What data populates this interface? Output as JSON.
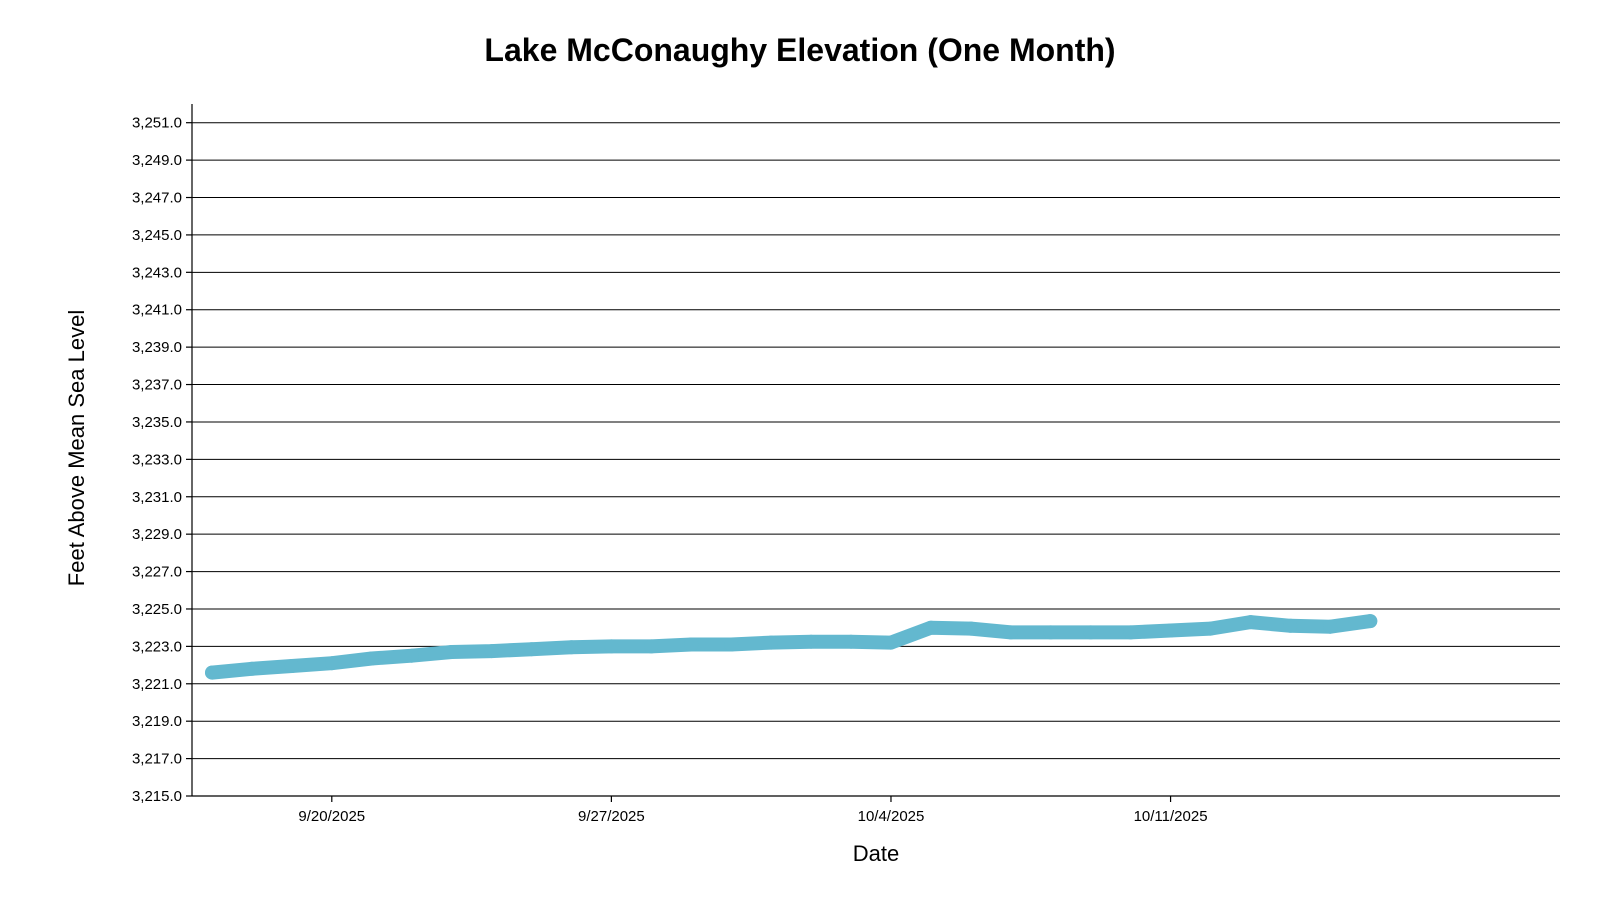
{
  "chart_data": {
    "type": "line",
    "title": "Lake McConaughy Elevation (One Month)",
    "xlabel": "Date",
    "ylabel": "Feet Above Mean Sea Level",
    "ylim": [
      3215.0,
      3252.0
    ],
    "xlim": [
      "2025-09-16T12:00",
      "2025-10-20T18:00"
    ],
    "grid": true,
    "line_color": "#63b8cf",
    "y_ticks": [
      "3,215.0",
      "3,217.0",
      "3,219.0",
      "3,221.0",
      "3,223.0",
      "3,225.0",
      "3,227.0",
      "3,229.0",
      "3,231.0",
      "3,233.0",
      "3,235.0",
      "3,237.0",
      "3,239.0",
      "3,241.0",
      "3,243.0",
      "3,245.0",
      "3,247.0",
      "3,249.0",
      "3,251.0"
    ],
    "x_ticks": [
      {
        "date": "2025-09-20",
        "label": "9/20/2025"
      },
      {
        "date": "2025-09-27",
        "label": "9/27/2025"
      },
      {
        "date": "2025-10-04",
        "label": "10/4/2025"
      },
      {
        "date": "2025-10-11",
        "label": "10/11/2025"
      }
    ],
    "series": [
      {
        "points": [
          {
            "x": "2025-09-17",
            "y": 3221.6
          },
          {
            "x": "2025-09-18",
            "y": 3221.8
          },
          {
            "x": "2025-09-19",
            "y": 3221.95
          },
          {
            "x": "2025-09-20",
            "y": 3222.1
          },
          {
            "x": "2025-09-21",
            "y": 3222.35
          },
          {
            "x": "2025-09-22",
            "y": 3222.5
          },
          {
            "x": "2025-09-23",
            "y": 3222.7
          },
          {
            "x": "2025-09-24",
            "y": 3222.75
          },
          {
            "x": "2025-09-25",
            "y": 3222.85
          },
          {
            "x": "2025-09-26",
            "y": 3222.95
          },
          {
            "x": "2025-09-27",
            "y": 3223.0
          },
          {
            "x": "2025-09-28",
            "y": 3223.0
          },
          {
            "x": "2025-09-29",
            "y": 3223.1
          },
          {
            "x": "2025-09-30",
            "y": 3223.1
          },
          {
            "x": "2025-10-01",
            "y": 3223.2
          },
          {
            "x": "2025-10-02",
            "y": 3223.25
          },
          {
            "x": "2025-10-03",
            "y": 3223.25
          },
          {
            "x": "2025-10-04",
            "y": 3223.2
          },
          {
            "x": "2025-10-05",
            "y": 3224.0
          },
          {
            "x": "2025-10-06",
            "y": 3223.95
          },
          {
            "x": "2025-10-07",
            "y": 3223.75
          },
          {
            "x": "2025-10-08",
            "y": 3223.75
          },
          {
            "x": "2025-10-09",
            "y": 3223.75
          },
          {
            "x": "2025-10-10",
            "y": 3223.75
          },
          {
            "x": "2025-10-11",
            "y": 3223.85
          },
          {
            "x": "2025-10-12",
            "y": 3223.95
          },
          {
            "x": "2025-10-13",
            "y": 3224.3
          },
          {
            "x": "2025-10-14",
            "y": 3224.1
          },
          {
            "x": "2025-10-15",
            "y": 3224.05
          },
          {
            "x": "2025-10-16",
            "y": 3224.35
          }
        ]
      }
    ]
  }
}
